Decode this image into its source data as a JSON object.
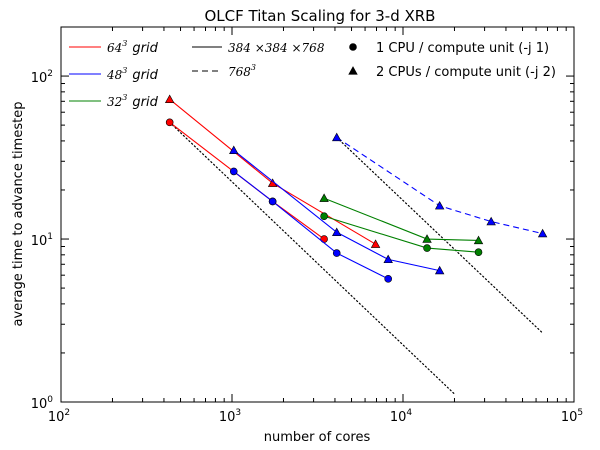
{
  "chart_data": {
    "type": "line",
    "title": "OLCF Titan Scaling for 3-d XRB",
    "xlabel": "number of cores",
    "ylabel": "average time to advance timestep",
    "xscale": "log",
    "yscale": "log",
    "xlim": [
      100,
      100000
    ],
    "ylim": [
      1,
      200
    ],
    "x_ticks": [
      {
        "base": "10",
        "exp": "2",
        "value": 100
      },
      {
        "base": "10",
        "exp": "3",
        "value": 1000
      },
      {
        "base": "10",
        "exp": "4",
        "value": 10000
      },
      {
        "base": "10",
        "exp": "5",
        "value": 100000
      }
    ],
    "y_ticks": [
      {
        "base": "10",
        "exp": "0",
        "value": 1
      },
      {
        "base": "10",
        "exp": "1",
        "value": 10
      },
      {
        "base": "10",
        "exp": "2",
        "value": 100
      }
    ],
    "grid": false,
    "legend": {
      "placement": "top",
      "resolution_entries": [
        {
          "label_base": "64",
          "label_exp": "3",
          "label_suffix": "grid",
          "color": "#ff0000"
        },
        {
          "label_base": "48",
          "label_exp": "3",
          "label_suffix": "grid",
          "color": "#0000ff"
        },
        {
          "label_base": "32",
          "label_exp": "3",
          "label_suffix": "grid",
          "color": "#008000"
        }
      ],
      "size_entries": [
        {
          "label": "384 ×384 ×768",
          "dash": "solid"
        },
        {
          "label_base": "768",
          "label_exp": "3",
          "dash": "dashed"
        }
      ],
      "marker_entries": [
        {
          "label": "1 CPU / compute unit (-j 1)",
          "marker": "circle"
        },
        {
          "label": "2 CPUs / compute unit (-j 2)",
          "marker": "triangle"
        }
      ]
    },
    "series": [
      {
        "name": "64^3 grid",
        "color": "#ff0000",
        "dash": "solid",
        "marker": "circle",
        "x": [
          432,
          1728,
          3456
        ],
        "y": [
          52,
          17,
          10
        ]
      },
      {
        "name": "64^3 grid",
        "color": "#ff0000",
        "dash": "solid",
        "marker": "triangle",
        "x": [
          432,
          1728,
          6912
        ],
        "y": [
          72,
          22,
          9.3
        ]
      },
      {
        "name": "48^3 grid",
        "color": "#0000ff",
        "dash": "solid",
        "marker": "circle",
        "x": [
          1024,
          1728,
          4096,
          8192
        ],
        "y": [
          26,
          17,
          8.2,
          5.7
        ]
      },
      {
        "name": "48^3 grid",
        "color": "#0000ff",
        "dash": "solid",
        "marker": "triangle",
        "x": [
          1024,
          4096,
          8192,
          16384
        ],
        "y": [
          35,
          11,
          7.5,
          6.4
        ]
      },
      {
        "name": "32^3 grid",
        "color": "#008000",
        "dash": "solid",
        "marker": "circle",
        "x": [
          3456,
          13824,
          27648
        ],
        "y": [
          13.8,
          8.8,
          8.3
        ]
      },
      {
        "name": "32^3 grid",
        "color": "#008000",
        "dash": "solid",
        "marker": "triangle",
        "x": [
          3456,
          13824,
          27648
        ],
        "y": [
          17.8,
          10,
          9.8
        ]
      },
      {
        "name": "48^3 grid",
        "color": "#0000ff",
        "dash": "dashed",
        "marker": "triangle",
        "x": [
          4096,
          16384,
          32768,
          65536
        ],
        "y": [
          42,
          16,
          12.8,
          10.8
        ]
      }
    ],
    "reference_lines": [
      {
        "style": "dotted",
        "color": "#000000",
        "x": [
          432,
          20000
        ],
        "y": [
          52,
          1.12
        ]
      },
      {
        "style": "dotted",
        "color": "#000000",
        "x": [
          4096,
          65536
        ],
        "y": [
          42,
          2.65
        ]
      }
    ]
  }
}
